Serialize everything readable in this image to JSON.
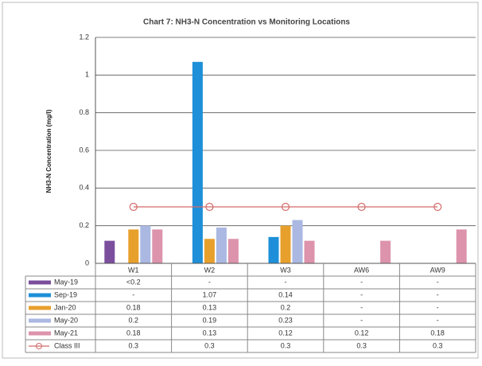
{
  "chart_data": {
    "type": "bar",
    "title": "Chart 7: NH3-N Concentration vs Monitoring Locations",
    "y_label": "NH3-N Concentration (mg/l)",
    "categories": [
      "W1",
      "W2",
      "W3",
      "AW6",
      "AW9"
    ],
    "series": [
      {
        "name": "May-19",
        "color": "#7b4f9d",
        "values": [
          0.12,
          null,
          null,
          null,
          null
        ],
        "value_labels": [
          "<0.2",
          "-",
          "-",
          "-",
          "-"
        ]
      },
      {
        "name": "Sep-19",
        "color": "#1e8fd8",
        "values": [
          null,
          1.07,
          0.14,
          null,
          null
        ],
        "value_labels": [
          "-",
          "1.07",
          "0.14",
          "-",
          "-"
        ]
      },
      {
        "name": "Jan-20",
        "color": "#e8a02c",
        "values": [
          0.18,
          0.13,
          0.2,
          null,
          null
        ],
        "value_labels": [
          "0.18",
          "0.13",
          "0.2",
          "-",
          "-"
        ]
      },
      {
        "name": "May-20",
        "color": "#aab8e2",
        "values": [
          0.2,
          0.19,
          0.23,
          null,
          null
        ],
        "value_labels": [
          "0.2",
          "0.19",
          "0.23",
          "-",
          "-"
        ]
      },
      {
        "name": "May-21",
        "color": "#dc93ab",
        "values": [
          0.18,
          0.13,
          0.12,
          0.12,
          0.18
        ],
        "value_labels": [
          "0.18",
          "0.13",
          "0.12",
          "0.12",
          "0.18"
        ]
      },
      {
        "name": "Class III",
        "color": "#d46a6a",
        "kind": "line",
        "values": [
          0.3,
          0.3,
          0.3,
          0.3,
          0.3
        ]
      }
    ],
    "ylim": [
      0,
      1.2
    ],
    "yticks": [
      0,
      0.2,
      0.4,
      0.6,
      0.8,
      1,
      1.2
    ],
    "grid": true
  }
}
